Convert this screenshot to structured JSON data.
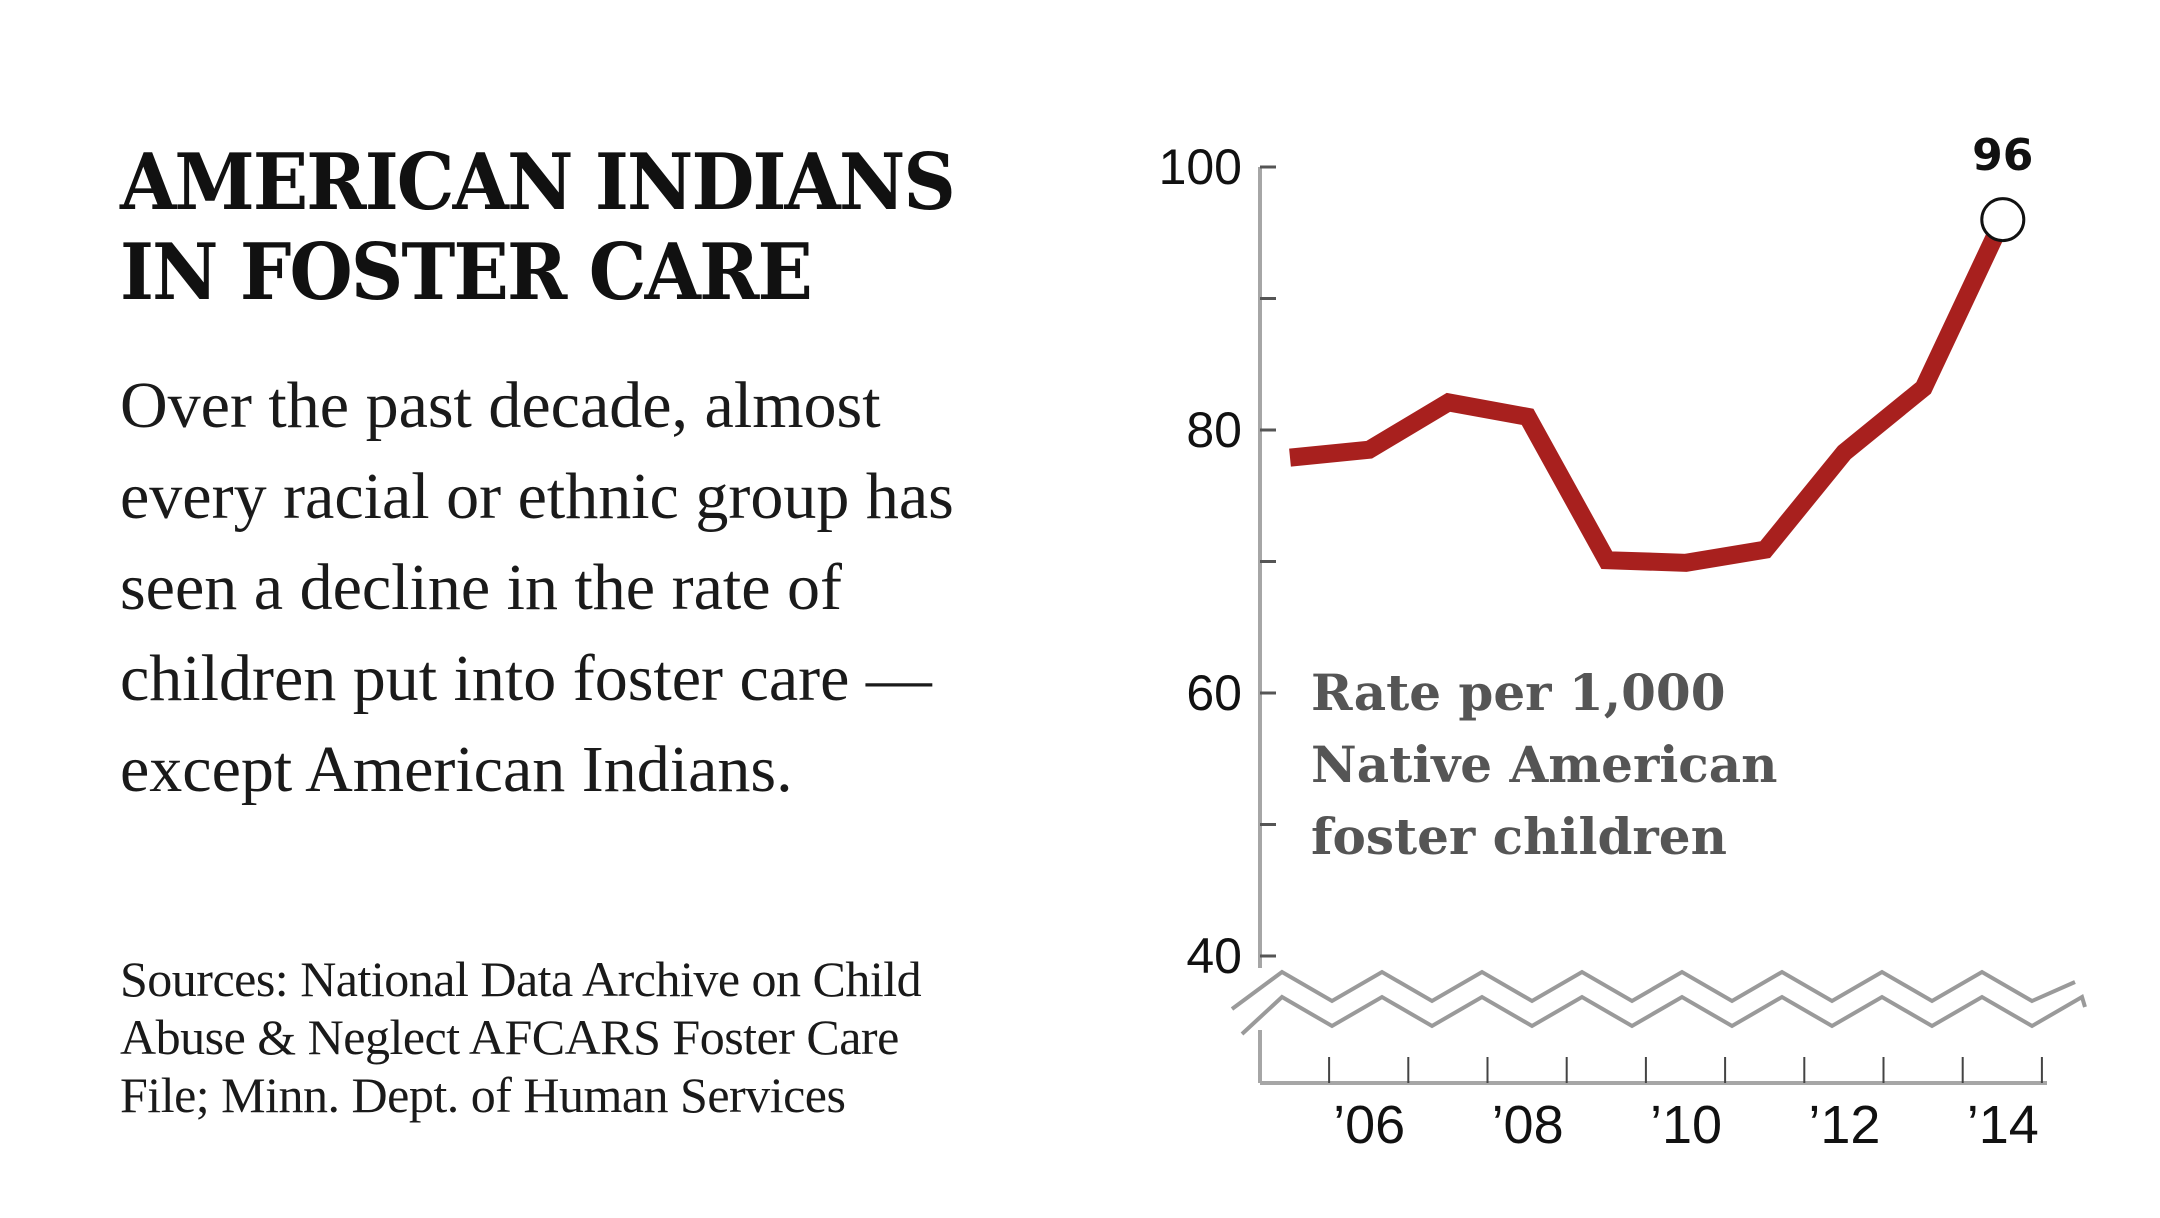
{
  "headline": {
    "lines": [
      "AMERICAN INDIANS",
      "IN FOSTER CARE"
    ]
  },
  "dek": {
    "lines": [
      "Over the past decade, almost",
      "every racial or ethnic group has",
      "seen a decline in the rate of",
      "children put into foster care —",
      "except American Indians."
    ]
  },
  "source": {
    "lines": [
      "Sources: National Data Archive on Child",
      "Abuse & Neglect AFCARS Foster Care",
      "File; Minn. Dept. of Human Services"
    ]
  },
  "colors": {
    "line": "#a8201e",
    "axis": "#a6a6a6",
    "tick": "#555555",
    "series_label": "#555555",
    "text": "#111111"
  },
  "chart_data": {
    "type": "line",
    "title": "AMERICAN INDIANS IN FOSTER CARE",
    "xlabel": "",
    "ylabel": "",
    "series_label_lines": [
      "Rate per 1,000",
      "Native American",
      "foster children"
    ],
    "x": [
      2005,
      2006,
      2007,
      2008,
      2009,
      2010,
      2011,
      2012,
      2013,
      2014
    ],
    "series": [
      {
        "name": "Rate per 1,000 Native American foster children",
        "values": [
          77.9,
          78.5,
          82.1,
          81.0,
          70.1,
          69.9,
          70.9,
          78.3,
          83.2,
          96
        ]
      }
    ],
    "ylim": [
      40,
      100
    ],
    "y_axis_break_below": 40,
    "yticks": [
      40,
      50,
      60,
      70,
      80,
      90,
      100
    ],
    "ytick_labels": [
      {
        "value": 100,
        "label": "100"
      },
      {
        "value": 80,
        "label": "80"
      },
      {
        "value": 60,
        "label": "60"
      },
      {
        "value": 40,
        "label": "40"
      }
    ],
    "xticks_minor": [
      2005,
      2006,
      2007,
      2008,
      2009,
      2010,
      2011,
      2012,
      2013,
      2014
    ],
    "xtick_labels": [
      {
        "value": 2006,
        "label": "’06"
      },
      {
        "value": 2008,
        "label": "’08"
      },
      {
        "value": 2010,
        "label": "’10"
      },
      {
        "value": 2012,
        "label": "’12"
      },
      {
        "value": 2014,
        "label": "’14"
      }
    ],
    "annotations": [
      {
        "x": 2014,
        "y": 96,
        "label": "96",
        "marker": "open-circle"
      }
    ],
    "grid": false,
    "legend": "none"
  }
}
